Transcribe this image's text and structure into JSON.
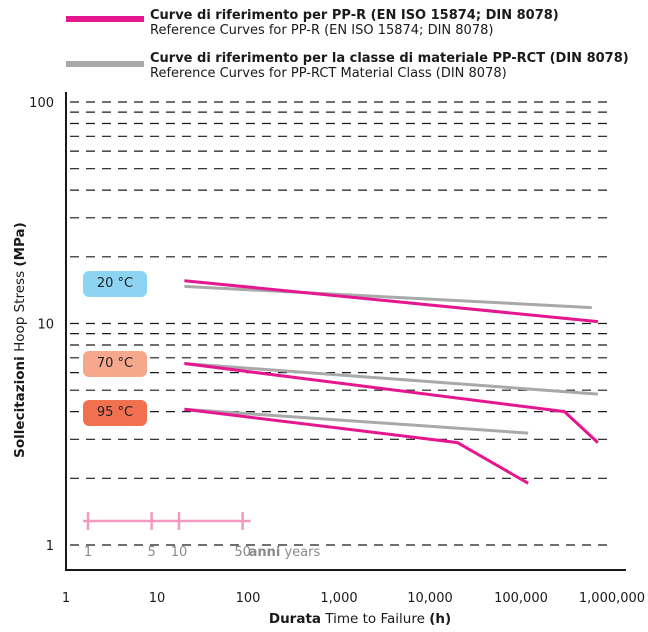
{
  "legend": [
    {
      "color": "#e5178e",
      "title_bold": "Curve di riferimento per PP-R (EN ISO 15874; DIN 8078)",
      "subtitle": "Reference Curves for PP-R (EN ISO 15874; DIN 8078)"
    },
    {
      "color": "#a9a9aa",
      "title_bold": "Curve di riferimento per la classe di materiale PP-RCT (DIN 8078)",
      "subtitle": "Reference Curves for PP-RCT Material Class (DIN 8078)"
    }
  ],
  "temperature_labels": [
    {
      "label": "20 °C",
      "color": "#8dd4f3"
    },
    {
      "label": "70 °C",
      "color": "#f6a88c"
    },
    {
      "label": "95 °C",
      "color": "#f0704f"
    }
  ],
  "axis_titles": {
    "y_bold": "Sollecitazioni",
    "y_rest": " Hoop Stress ",
    "y_unit": "(MPa)",
    "x_bold": "Durata",
    "x_rest": " Time to Failure ",
    "x_unit": "(h)"
  },
  "years_scale": {
    "color": "#f49ac1",
    "ticks": [
      1,
      5,
      10,
      50
    ],
    "tick_labels": [
      "1",
      "5",
      "10",
      "50"
    ],
    "unit_bold": "anni",
    "unit": "years"
  },
  "chart_data": {
    "type": "line",
    "x_scale": "log",
    "y_scale": "log",
    "xlim": [
      1,
      1000000
    ],
    "ylim": [
      1,
      100
    ],
    "x_ticks": [
      1,
      10,
      100,
      1000,
      10000,
      100000,
      1000000
    ],
    "x_tick_labels": [
      "1",
      "10",
      "100",
      "1,000",
      "10,000",
      "100,000",
      "1,000,000"
    ],
    "y_ticks": [
      1,
      10,
      100
    ],
    "y_tick_labels": [
      "1",
      "10",
      "100"
    ],
    "grid": "dashed horizontal at 2–9, 20–90",
    "grid_values": [
      2,
      3,
      4,
      5,
      6,
      7,
      8,
      9,
      20,
      30,
      40,
      50,
      60,
      70,
      80,
      90
    ],
    "series": [
      {
        "name": "Curve di riferimento per PP-R (EN ISO 15874; DIN 8078)",
        "temperature": "20 °C",
        "color": "#e5178e",
        "points": [
          [
            20,
            15.6
          ],
          [
            700000,
            10.2
          ]
        ]
      },
      {
        "name": "Curve di riferimento per la classe di materiale PP-RCT (DIN 8078)",
        "temperature": "20 °C",
        "color": "#a9a9aa",
        "points": [
          [
            20,
            14.7
          ],
          [
            600000,
            11.8
          ]
        ]
      },
      {
        "name": "Curve di riferimento per PP-R (EN ISO 15874; DIN 8078)",
        "temperature": "70 °C",
        "color": "#e5178e",
        "points": [
          [
            20,
            6.6
          ],
          [
            300000,
            4.0
          ],
          [
            700000,
            2.9
          ]
        ]
      },
      {
        "name": "Curve di riferimento per la classe di materiale PP-RCT (DIN 8078)",
        "temperature": "70 °C",
        "color": "#a9a9aa",
        "points": [
          [
            20,
            6.6
          ],
          [
            700000,
            4.8
          ]
        ]
      },
      {
        "name": "Curve di riferimento per PP-R (EN ISO 15874; DIN 8078)",
        "temperature": "95 °C",
        "color": "#e5178e",
        "points": [
          [
            20,
            4.1
          ],
          [
            20000,
            2.9
          ],
          [
            120000,
            1.9
          ]
        ]
      },
      {
        "name": "Curve di riferimento per la classe di materiale PP-RCT (DIN 8078)",
        "temperature": "95 °C",
        "color": "#a9a9aa",
        "points": [
          [
            20,
            4.1
          ],
          [
            120000,
            3.2
          ]
        ]
      }
    ]
  }
}
